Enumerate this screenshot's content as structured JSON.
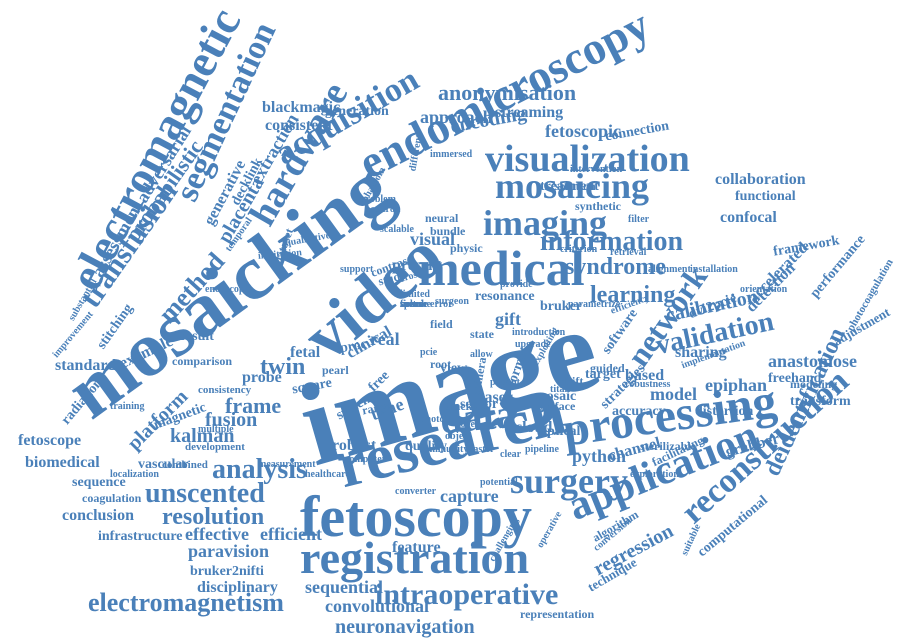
{
  "color": "#4a80b9",
  "words": [
    "image",
    "mosaicking",
    "research",
    "video",
    "medical",
    "fetoscopy",
    "processing",
    "registration",
    "endomicroscopy",
    "electromagnetic",
    "visualization",
    "imaging",
    "mosaicing",
    "data",
    "acquisition",
    "application",
    "hardware",
    "segmentation",
    "surgery",
    "intraoperative",
    "reconstruction",
    "network",
    "information",
    "analysis",
    "unscented",
    "transfusion",
    "validation",
    "learning",
    "syndrome",
    "method",
    "electromagnetism",
    "resolution",
    "anonymisation",
    "deidentification",
    "neuronavigation",
    "calibration",
    "encoding",
    "frame",
    "kalman",
    "fusion",
    "twin",
    "time",
    "convolutional",
    "regression",
    "capture",
    "sequential",
    "efficient",
    "effective",
    "probabilistic",
    "assessment",
    "adversarial",
    "placenta",
    "generative",
    "extraction",
    "decklink",
    "blackmagic",
    "consistent",
    "approach",
    "streaming",
    "fetoscopic",
    "connection",
    "collaboration",
    "functional",
    "confocal",
    "framework",
    "accelerated",
    "performance",
    "detection",
    "anastomose",
    "freehand",
    "epiphan",
    "model",
    "based",
    "software",
    "dvi2pcie",
    "sharing",
    "distortion",
    "transform",
    "modeling",
    "adjustment",
    "photocoagulation",
    "python",
    "channel",
    "grabber",
    "computational",
    "technique",
    "representation",
    "feature",
    "paravision",
    "bruker2nifti",
    "disciplinary",
    "infrastructure",
    "conclusion",
    "coagulation",
    "sequence",
    "vascular",
    "biomedical",
    "fetoscope",
    "platform",
    "radiation",
    "standard",
    "stitching",
    "example",
    "result",
    "clinical",
    "visual",
    "gift",
    "bruker",
    "resonance",
    "solution",
    "treatment",
    "synthetic",
    "intervention",
    "neural",
    "bundle",
    "physic",
    "real",
    "fetal",
    "square",
    "probe",
    "magnetic",
    "robust",
    "quality",
    "sensor",
    "laser",
    "cloud",
    "optical",
    "drift",
    "guided",
    "target",
    "mosaic",
    "surface",
    "tracking",
    "range",
    "system",
    "free",
    "proc",
    "view",
    "field",
    "scipy",
    "camera",
    "format",
    "accuracy",
    "strategies",
    "sterilizable",
    "facilitating",
    "algorithm",
    "suitable",
    "comparison",
    "consistency",
    "development",
    "combined",
    "localization",
    "measurement",
    "multiple",
    "training",
    "community",
    "computer",
    "healthcare",
    "converter",
    "potential",
    "challenging",
    "operative",
    "conversion",
    "exploration",
    "robustness",
    "implementation",
    "installation",
    "orientation",
    "alignment",
    "retrieval",
    "criterion",
    "parametrize",
    "efficiency",
    "filter",
    "present",
    "contrast",
    "study",
    "limited",
    "cross",
    "different",
    "immersed",
    "phantom",
    "problem",
    "positron",
    "scalable",
    "generation",
    "dataset",
    "qualitative",
    "institution",
    "temporal",
    "improvement",
    "substantial",
    "endoscopic",
    "pearl",
    "root",
    "pcie",
    "state",
    "allow",
    "exploiting",
    "patient",
    "provide",
    "error",
    "support",
    "surgeon",
    "introduction",
    "upgrade",
    "failure",
    "photo",
    "titan",
    "novel",
    "object",
    "pipeline",
    "faster",
    "clear",
    "focus",
    "sparse",
    "speed",
    "metric",
    "tissue",
    "volume"
  ]
}
